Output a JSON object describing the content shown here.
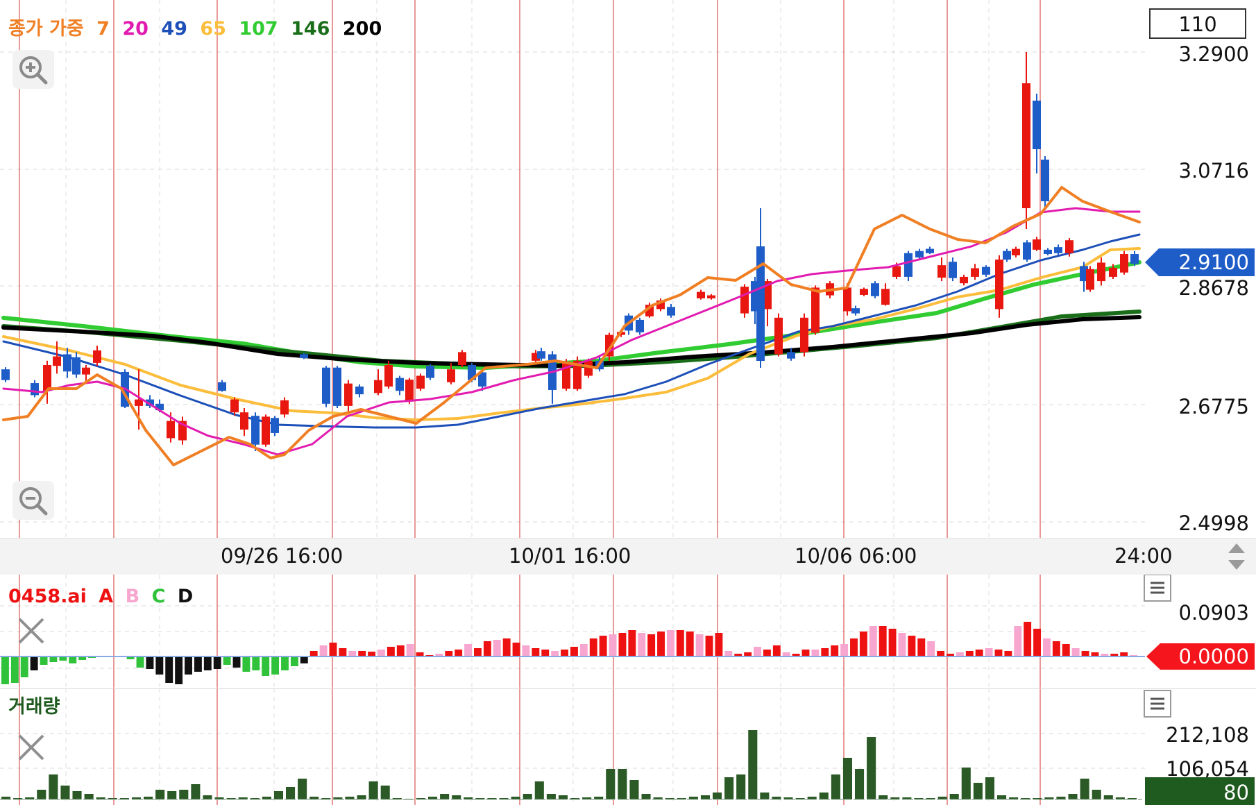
{
  "legend": {
    "prefix": "종가 가중",
    "ma_items": [
      {
        "label": "7",
        "color": "#F07F24"
      },
      {
        "label": "20",
        "color": "#E21BB0"
      },
      {
        "label": "49",
        "color": "#1D4FB8"
      },
      {
        "label": "65",
        "color": "#FBBD3B"
      },
      {
        "label": "107",
        "color": "#30CC32"
      },
      {
        "label": "146",
        "color": "#1A6E1A"
      },
      {
        "label": "200",
        "color": "#000000"
      }
    ]
  },
  "period_box": "110",
  "price_axis": {
    "ticks": [
      "3.2900",
      "3.0716",
      "2.8678",
      "2.6775",
      "2.4998"
    ],
    "current_price": "2.9100"
  },
  "time_axis": {
    "labels": [
      "09/26 16:00",
      "10/01 16:00",
      "10/06 06:00",
      "24:00"
    ]
  },
  "indicator_panel": {
    "title": "0458.ai",
    "series_labels": [
      {
        "label": "A",
        "color": "#EE1111"
      },
      {
        "label": "B",
        "color": "#F7A6CF"
      },
      {
        "label": "C",
        "color": "#2FC23A"
      },
      {
        "label": "D",
        "color": "#111111"
      }
    ],
    "axis_top": "0.0903",
    "current_value": "0.0000"
  },
  "volume_panel": {
    "title": "거래량",
    "axis_ticks": [
      "212,108",
      "106,054"
    ],
    "current_value": "80"
  },
  "icons": [
    "zoom-in-icon",
    "zoom-out-icon",
    "close-icon",
    "menu-icon",
    "scroll-arrows-icon"
  ],
  "chart_data": {
    "type": "candlestick",
    "y_ticks": [
      3.29,
      3.0716,
      2.8678,
      2.6775,
      2.4998
    ],
    "last_price": 2.91,
    "x_tick_labels": [
      "09/26 16:00",
      "10/01 16:00",
      "10/06 06:00",
      "24:00"
    ]
  }
}
